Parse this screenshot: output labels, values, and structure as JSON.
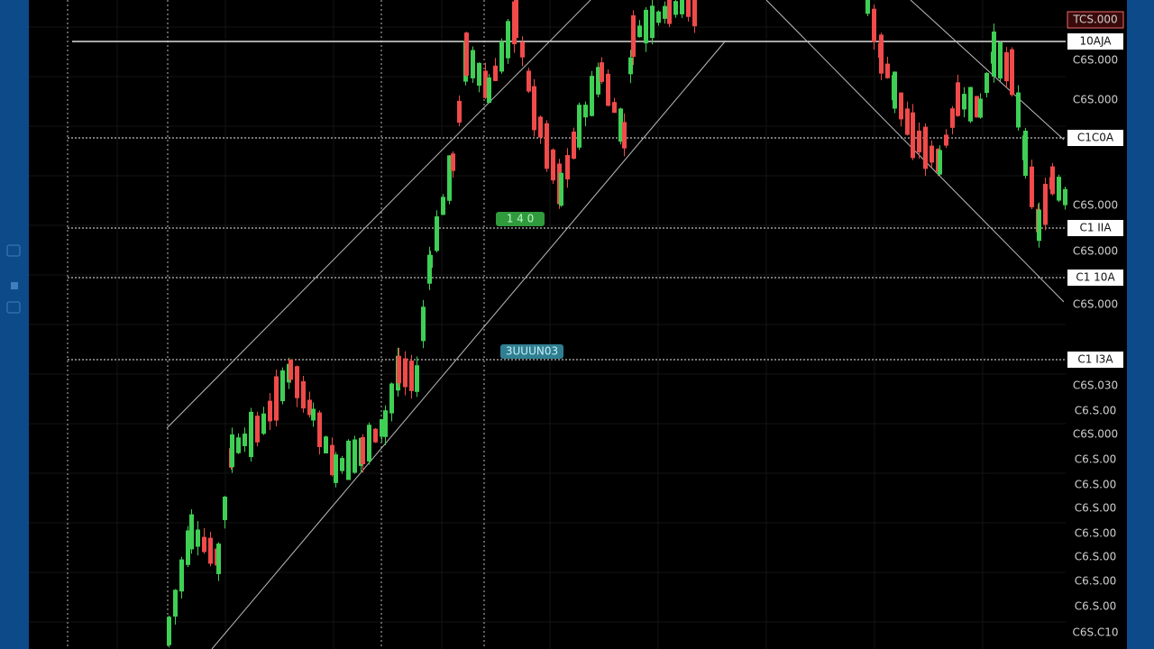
{
  "price_axis": {
    "labels": [
      {
        "text": "TCS.000",
        "highlighted": false,
        "alert": true
      },
      {
        "text": "10AJA",
        "highlighted": true
      },
      {
        "text": "C6S.000",
        "highlighted": false
      },
      {
        "text": "C6S.000",
        "highlighted": false
      },
      {
        "text": "C1C0A",
        "highlighted": true
      },
      {
        "text": "C6S.000",
        "highlighted": false
      },
      {
        "text": "C1 IIA",
        "highlighted": true
      },
      {
        "text": "C6S.000",
        "highlighted": false
      },
      {
        "text": "C1 10A",
        "highlighted": true
      },
      {
        "text": "C6S.000",
        "highlighted": false
      },
      {
        "text": "C1 I3A",
        "highlighted": true
      },
      {
        "text": "C6S.030",
        "highlighted": false
      },
      {
        "text": "C6.S.00",
        "highlighted": false
      },
      {
        "text": "C6S.000",
        "highlighted": false
      },
      {
        "text": "C6.S.00",
        "highlighted": false
      },
      {
        "text": "C6.S.00",
        "highlighted": false
      },
      {
        "text": "C6.S.00",
        "highlighted": false
      },
      {
        "text": "C6.S.00",
        "highlighted": false
      },
      {
        "text": "C6.S.00",
        "highlighted": false
      },
      {
        "text": "C6.S.00",
        "highlighted": false
      },
      {
        "text": "C6.S.00",
        "highlighted": false
      },
      {
        "text": "C6S.C10",
        "highlighted": false
      }
    ]
  },
  "badges": [
    {
      "text": "1 4 0",
      "style": "green"
    },
    {
      "text": "3UUUN03",
      "style": "teal"
    }
  ]
}
